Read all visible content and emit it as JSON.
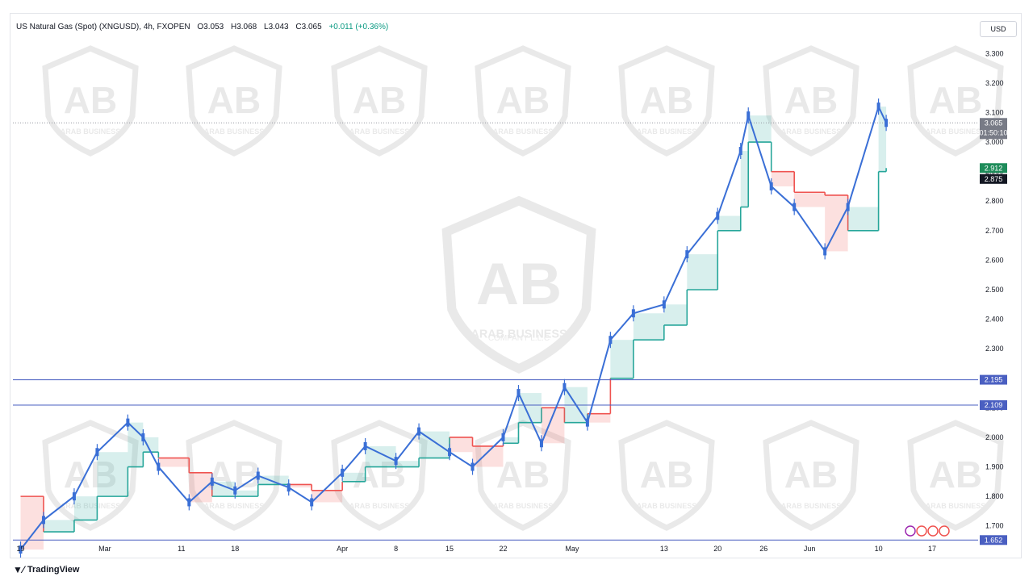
{
  "header": {
    "symbol": "US Natural Gas (Spot) (XNGUSD), 4h, FXOPEN",
    "open": "O3.053",
    "high": "H3.068",
    "low": "L3.043",
    "close": "C3.065",
    "change": "+0.011 (+0.36%)"
  },
  "currency": "USD",
  "footer": {
    "brand": "TradingView"
  },
  "watermark": {
    "name": "ARAB BUSINESS",
    "sub": "COMPANY L.L.C"
  },
  "colors": {
    "candle": "#3a6fd6",
    "support": "#26a69a",
    "resistance": "#ef5350",
    "hline": "#4a5fc1",
    "last_price_bg": "#787b86",
    "stop_green": "#1e8c5a",
    "stop_black": "#131722"
  },
  "chart_data": {
    "type": "line",
    "title": "",
    "xlabel": "",
    "ylabel": "",
    "ylim": [
      1.65,
      3.35
    ],
    "yticks": [
      "3.300",
      "3.200",
      "3.100",
      "3.000",
      "2.900",
      "2.800",
      "2.700",
      "2.600",
      "2.500",
      "2.400",
      "2.300",
      "2.200",
      "2.100",
      "2.000",
      "1.900",
      "1.800",
      "1.700"
    ],
    "xticks": [
      {
        "label": "19",
        "date": "2024-02-19"
      },
      {
        "label": "Mar",
        "date": "2024-03-01"
      },
      {
        "label": "11",
        "date": "2024-03-11"
      },
      {
        "label": "18",
        "date": "2024-03-18"
      },
      {
        "label": "Apr",
        "date": "2024-04-01"
      },
      {
        "label": "8",
        "date": "2024-04-08"
      },
      {
        "label": "15",
        "date": "2024-04-15"
      },
      {
        "label": "22",
        "date": "2024-04-22"
      },
      {
        "label": "May",
        "date": "2024-05-01"
      },
      {
        "label": "13",
        "date": "2024-05-13"
      },
      {
        "label": "20",
        "date": "2024-05-20"
      },
      {
        "label": "26",
        "date": "2024-05-26"
      },
      {
        "label": "Jun",
        "date": "2024-06-01"
      },
      {
        "label": "10",
        "date": "2024-06-10"
      },
      {
        "label": "17",
        "date": "2024-06-17"
      }
    ],
    "price_series": {
      "x": [
        "2024-02-19",
        "2024-02-22",
        "2024-02-26",
        "2024-02-29",
        "2024-03-04",
        "2024-03-06",
        "2024-03-08",
        "2024-03-12",
        "2024-03-15",
        "2024-03-18",
        "2024-03-21",
        "2024-03-25",
        "2024-03-28",
        "2024-04-01",
        "2024-04-04",
        "2024-04-08",
        "2024-04-11",
        "2024-04-15",
        "2024-04-18",
        "2024-04-22",
        "2024-04-24",
        "2024-04-27",
        "2024-04-30",
        "2024-05-03",
        "2024-05-06",
        "2024-05-09",
        "2024-05-13",
        "2024-05-16",
        "2024-05-20",
        "2024-05-23",
        "2024-05-24",
        "2024-05-27",
        "2024-05-30",
        "2024-06-03",
        "2024-06-06",
        "2024-06-10",
        "2024-06-11"
      ],
      "y": [
        1.62,
        1.72,
        1.8,
        1.95,
        2.05,
        2.0,
        1.9,
        1.78,
        1.85,
        1.82,
        1.87,
        1.83,
        1.78,
        1.88,
        1.97,
        1.92,
        2.02,
        1.95,
        1.9,
        2.0,
        2.15,
        1.98,
        2.17,
        2.05,
        2.33,
        2.42,
        2.45,
        2.62,
        2.75,
        2.97,
        3.09,
        2.85,
        2.78,
        2.63,
        2.78,
        3.12,
        3.065
      ]
    },
    "trailing_stop": {
      "x": [
        "2024-02-19",
        "2024-02-22",
        "2024-02-26",
        "2024-02-29",
        "2024-03-04",
        "2024-03-06",
        "2024-03-08",
        "2024-03-12",
        "2024-03-15",
        "2024-03-18",
        "2024-03-21",
        "2024-03-25",
        "2024-03-28",
        "2024-04-01",
        "2024-04-04",
        "2024-04-08",
        "2024-04-11",
        "2024-04-15",
        "2024-04-18",
        "2024-04-22",
        "2024-04-24",
        "2024-04-27",
        "2024-04-30",
        "2024-05-03",
        "2024-05-06",
        "2024-05-09",
        "2024-05-13",
        "2024-05-16",
        "2024-05-20",
        "2024-05-23",
        "2024-05-24",
        "2024-05-27",
        "2024-05-30",
        "2024-06-03",
        "2024-06-06",
        "2024-06-10",
        "2024-06-11"
      ],
      "y": [
        1.8,
        1.68,
        1.72,
        1.8,
        1.9,
        1.95,
        1.93,
        1.88,
        1.8,
        1.8,
        1.84,
        1.84,
        1.82,
        1.85,
        1.9,
        1.9,
        1.93,
        2.0,
        1.97,
        1.98,
        2.05,
        2.1,
        2.05,
        2.08,
        2.2,
        2.33,
        2.38,
        2.5,
        2.7,
        2.78,
        3.0,
        2.9,
        2.83,
        2.82,
        2.7,
        2.9,
        2.912
      ]
    },
    "horizontal_lines": [
      2.195,
      2.109,
      1.652
    ],
    "price_labels": [
      {
        "value": 3.065,
        "text": "3.065",
        "sub": "01:50:10",
        "kind": "last"
      },
      {
        "value": 2.912,
        "text": "2.912",
        "kind": "green"
      },
      {
        "value": 2.875,
        "text": "2.875",
        "kind": "black"
      },
      {
        "value": 2.195,
        "text": "2.195",
        "kind": "line"
      },
      {
        "value": 2.109,
        "text": "2.109",
        "kind": "line"
      },
      {
        "value": 1.652,
        "text": "1.652",
        "kind": "line"
      }
    ]
  }
}
